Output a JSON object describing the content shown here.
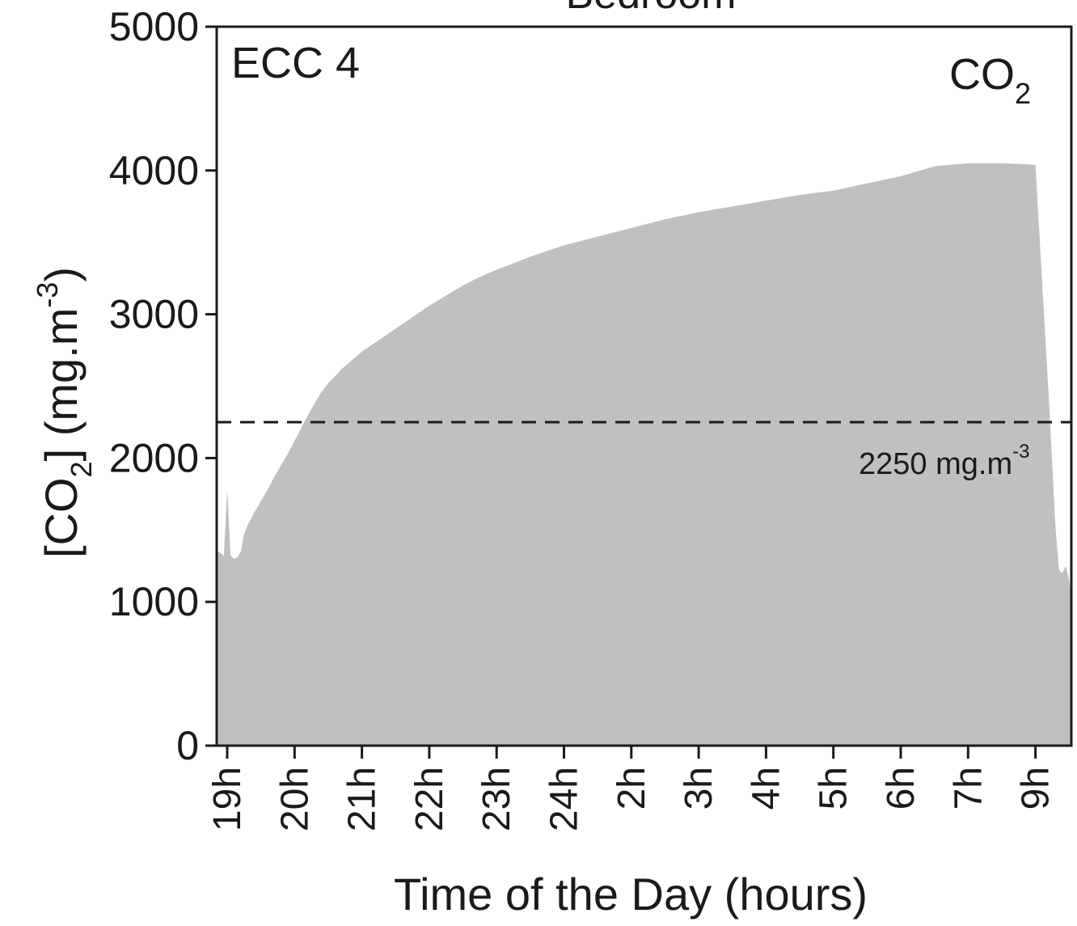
{
  "chart_data": {
    "type": "area",
    "title": "Bedroom",
    "panel_label": "ECC 4",
    "species_label": {
      "main": "CO",
      "sub": "2"
    },
    "ylabel": {
      "pre": "[CO",
      "sub": "2",
      "mid": "] (mg.m",
      "sup": "-3",
      "post": ")"
    },
    "xlabel": "Time of the Day (hours)",
    "ylim": [
      0,
      5000
    ],
    "yticks": [
      0,
      1000,
      2000,
      3000,
      4000,
      5000
    ],
    "xticks": [
      "19h",
      "20h",
      "21h",
      "22h",
      "23h",
      "24h",
      "2h",
      "3h",
      "4h",
      "5h",
      "6h",
      "7h",
      "9h"
    ],
    "grid": false,
    "threshold": {
      "value": 2250,
      "label": "2250 mg.m",
      "label_sup": "-3",
      "style": "dashed"
    },
    "fill_color": "#c0c0c0",
    "series": [
      {
        "x": [
          -0.15,
          -0.1,
          -0.05,
          0.0,
          0.05,
          0.1,
          0.15,
          0.2,
          0.25,
          0.3,
          0.4,
          0.5,
          0.6,
          0.7,
          0.8,
          0.9,
          1.0,
          1.1,
          1.2,
          1.3,
          1.4,
          1.5,
          1.6,
          1.7,
          1.8,
          1.9,
          2.0,
          2.25,
          2.5,
          2.75,
          3.0,
          3.25,
          3.5,
          3.75,
          4.0,
          4.5,
          5.0,
          5.5,
          6.0,
          6.5,
          7.0,
          7.5,
          8.0,
          8.5,
          9.0,
          9.5,
          10.0,
          10.5,
          11.0,
          11.5,
          12.0,
          12.2,
          12.3,
          12.35,
          12.4,
          12.45,
          12.5,
          12.55,
          12.6
        ],
        "values": [
          1350,
          1340,
          1320,
          1780,
          1320,
          1300,
          1310,
          1350,
          1470,
          1530,
          1620,
          1700,
          1780,
          1870,
          1950,
          2030,
          2120,
          2210,
          2300,
          2380,
          2460,
          2520,
          2570,
          2620,
          2660,
          2700,
          2740,
          2820,
          2900,
          2980,
          3060,
          3130,
          3200,
          3260,
          3310,
          3400,
          3480,
          3540,
          3600,
          3660,
          3710,
          3750,
          3790,
          3830,
          3860,
          3910,
          3960,
          4030,
          4050,
          4050,
          4040,
          2400,
          1500,
          1220,
          1200,
          1250,
          1150,
          1100,
          1100
        ]
      }
    ]
  }
}
